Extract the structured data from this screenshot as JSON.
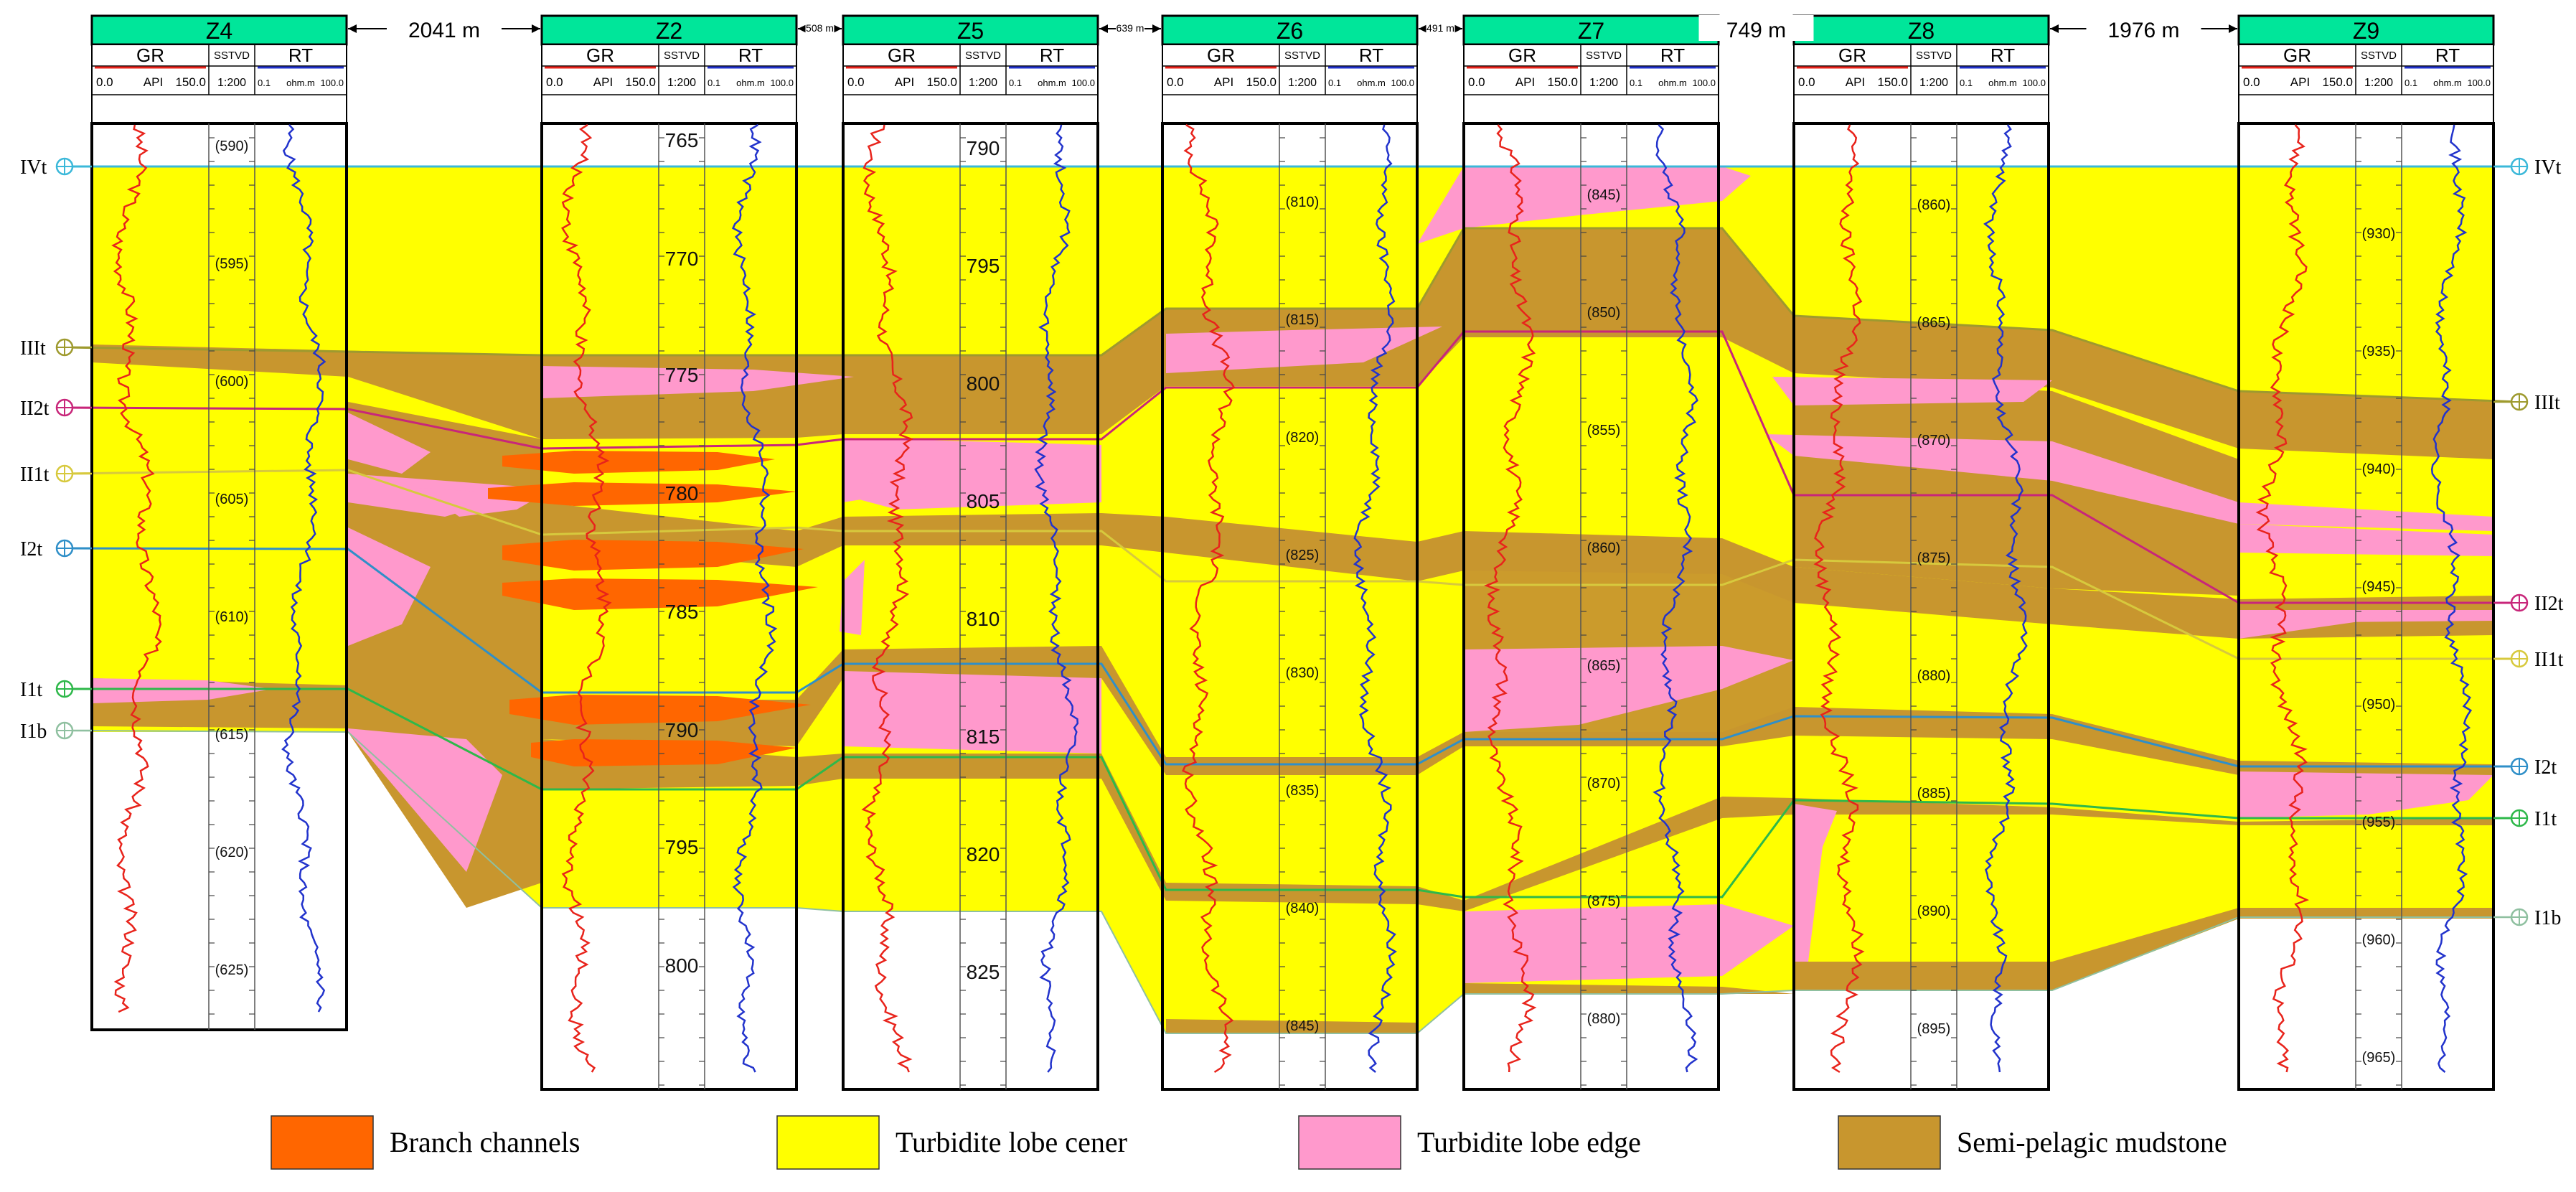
{
  "colors": {
    "channel": "#FF6600",
    "lobe_center": "#FFFF00",
    "lobe_edge": "#FF99CC",
    "mudstone": "#C8962E",
    "header": "#00E69A",
    "gr_curve": "#E8231B",
    "rt_curve": "#2233CC"
  },
  "wells": [
    {
      "name": "Z4",
      "depths": [
        "(590)",
        "(595)",
        "(600)",
        "(605)",
        "(610)",
        "(615)",
        "(620)",
        "(625)"
      ]
    },
    {
      "name": "Z2",
      "depths": [
        "765",
        "770",
        "775",
        "780",
        "785",
        "790",
        "795",
        "800"
      ]
    },
    {
      "name": "Z5",
      "depths": [
        "790",
        "795",
        "800",
        "805",
        "810",
        "815",
        "820",
        "825"
      ]
    },
    {
      "name": "Z6",
      "depths": [
        "(810)",
        "(815)",
        "(820)",
        "(825)",
        "(830)",
        "(835)",
        "(840)",
        "(845)"
      ]
    },
    {
      "name": "Z7",
      "depths": [
        "(845)",
        "(850)",
        "(855)",
        "(860)",
        "(865)",
        "(870)",
        "(875)",
        "(880)"
      ]
    },
    {
      "name": "Z8",
      "depths": [
        "(860)",
        "(865)",
        "(870)",
        "(875)",
        "(880)",
        "(885)",
        "(890)",
        "(895)"
      ]
    },
    {
      "name": "Z9",
      "depths": [
        "(930)",
        "(935)",
        "(940)",
        "(945)",
        "(950)",
        "(955)",
        "(960)",
        "(965)"
      ]
    }
  ],
  "track_headers": {
    "gr": "GR",
    "sstvd": "SSTVD",
    "rt": "RT",
    "gr_min": "0.0",
    "gr_unit": "API",
    "gr_max": "150.0",
    "scale": "1:200",
    "rt_min": "0.1",
    "rt_unit": "ohm.m",
    "rt_max": "100.0"
  },
  "distances": [
    "2041 m",
    "508 m",
    "639 m",
    "491 m",
    "749 m",
    "1976 m"
  ],
  "horizons_left": [
    "IVt",
    "IIIt",
    "II2t",
    "II1t",
    "I2t",
    "I1t",
    "I1b"
  ],
  "horizons_right": [
    "IVt",
    "IIIt",
    "II2t",
    "II1t",
    "I2t",
    "I1t",
    "I1b"
  ],
  "legend": [
    {
      "label": "Branch channels",
      "color": "#FF6600"
    },
    {
      "label": "Turbidite lobe cener",
      "color": "#FFFF00"
    },
    {
      "label": "Turbidite  lobe  edge",
      "color": "#FF99CC"
    },
    {
      "label": "Semi-pelagic mudstone",
      "color": "#C8962E"
    }
  ]
}
